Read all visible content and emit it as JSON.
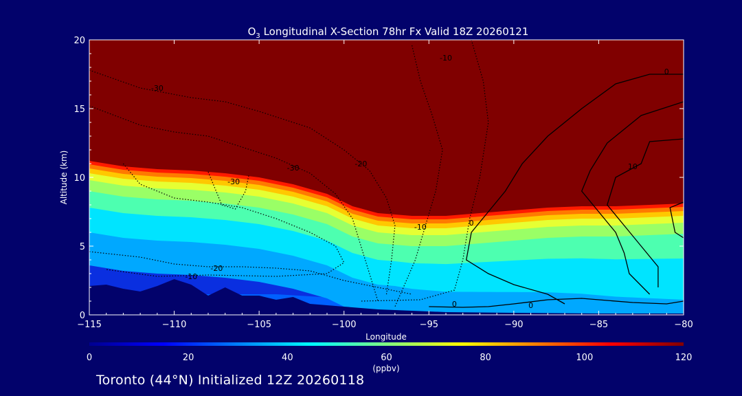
{
  "figure_caption": "Toronto (44°N) Initialized 12Z 20260118",
  "chart_data": {
    "type": "heatmap",
    "title": "O3 Longitudinal X-Section 78hr  Fx Valid 18Z 20260121",
    "title_parts": {
      "species_base": "O",
      "species_sub": "3",
      "rest": " Longitudinal X-Section 78hr  Fx Valid 18Z 20260121"
    },
    "xlabel": "Longitude",
    "ylabel": "Altitude (km)",
    "xlim": [
      -115,
      -80
    ],
    "ylim": [
      0,
      20
    ],
    "xticks": [
      -115,
      -110,
      -105,
      -100,
      -95,
      -90,
      -85,
      -80
    ],
    "xtick_labels": [
      "−115",
      "−110",
      "−105",
      "−100",
      "−95",
      "−90",
      "−85",
      "−80"
    ],
    "yticks": [
      0,
      5,
      10,
      15,
      20
    ],
    "ytick_labels": [
      "0",
      "5",
      "10",
      "15",
      "20"
    ],
    "colorbar": {
      "label": "(ppbv)",
      "range": [
        0,
        120
      ],
      "ticks": [
        0,
        20,
        40,
        60,
        80,
        100,
        120
      ],
      "tick_labels": [
        "0",
        "20",
        "40",
        "60",
        "80",
        "100",
        "120"
      ],
      "colors": [
        "#00008f",
        "#0000ff",
        "#0080ff",
        "#00ffff",
        "#80ff80",
        "#ffff00",
        "#ff8000",
        "#ff0000",
        "#800000"
      ]
    },
    "field_description": "O3 concentration (ppbv) vs longitude and altitude; stratospheric values >=120 above the tropopause",
    "tropopause_height_km": {
      "lon": [
        -115,
        -113,
        -111,
        -109,
        -107,
        -105,
        -103,
        -101,
        -99.5,
        -98,
        -96,
        -94,
        -92,
        -90,
        -88,
        -86,
        -84,
        -82,
        -80
      ],
      "alt": [
        11.2,
        10.8,
        10.6,
        10.5,
        10.3,
        10.0,
        9.5,
        8.8,
        7.9,
        7.4,
        7.2,
        7.2,
        7.4,
        7.6,
        7.8,
        7.9,
        7.9,
        8.0,
        8.1
      ]
    },
    "terrain_km": {
      "lon": [
        -115,
        -114,
        -113,
        -112,
        -111,
        -110,
        -109,
        -108,
        -107,
        -106,
        -105,
        -104,
        -103,
        -102,
        -100,
        -98,
        -96,
        -94,
        -90,
        -85,
        -80
      ],
      "alt": [
        2.1,
        2.2,
        1.9,
        1.7,
        2.1,
        2.6,
        2.2,
        1.4,
        2.0,
        1.4,
        1.4,
        1.1,
        1.3,
        0.8,
        0.6,
        0.4,
        0.3,
        0.2,
        0.15,
        0.1,
        0.1
      ]
    },
    "contours": [
      {
        "level": "-30",
        "style": "dotted",
        "label_at": [
          -111,
          16.3
        ]
      },
      {
        "level": "-30",
        "style": "dotted",
        "label_at": [
          -103,
          10.5
        ]
      },
      {
        "level": "-30",
        "style": "dotted",
        "label_at": [
          -106.5,
          9.5
        ]
      },
      {
        "level": "-20",
        "style": "dotted",
        "label_at": [
          -99,
          10.8
        ]
      },
      {
        "level": "-20",
        "style": "dotted",
        "label_at": [
          -107.5,
          3.2
        ]
      },
      {
        "level": "-10",
        "style": "dotted",
        "label_at": [
          -94,
          18.5
        ]
      },
      {
        "level": "-10",
        "style": "dotted",
        "label_at": [
          -95.5,
          6.2
        ]
      },
      {
        "level": "-10",
        "style": "dotted",
        "label_at": [
          -109,
          2.6
        ]
      },
      {
        "level": "0",
        "style": "solid",
        "label_at": [
          -81,
          17.5
        ]
      },
      {
        "level": "0",
        "style": "solid",
        "label_at": [
          -92.5,
          6.5
        ]
      },
      {
        "level": "0",
        "style": "solid",
        "label_at": [
          -93.5,
          0.6
        ]
      },
      {
        "level": "0",
        "style": "solid",
        "label_at": [
          -89,
          0.5
        ]
      },
      {
        "level": "10",
        "style": "solid",
        "label_at": [
          -83,
          10.6
        ]
      }
    ]
  }
}
